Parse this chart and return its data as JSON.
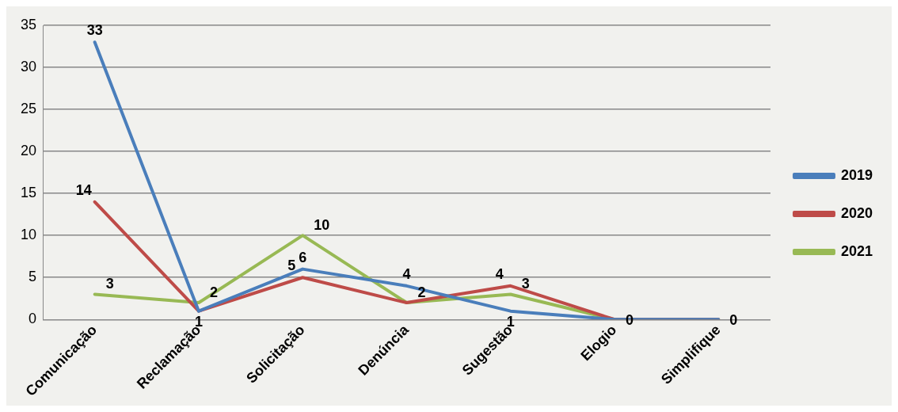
{
  "chart_data": {
    "type": "line",
    "categories": [
      "Comunicação",
      "Reclamação",
      "Solicitação",
      "Denúncia",
      "Sugestão",
      "Elogio",
      "Simplifique"
    ],
    "series": [
      {
        "name": "2019",
        "color": "#4a7ebb",
        "values": [
          33,
          1,
          6,
          4,
          1,
          0,
          0
        ],
        "value_labels": [
          "33",
          "1",
          "6",
          "4",
          "1",
          null,
          null
        ]
      },
      {
        "name": "2020",
        "color": "#be4b48",
        "values": [
          14,
          1,
          5,
          2,
          4,
          0,
          0
        ],
        "value_labels": [
          "14",
          null,
          "5",
          null,
          "4",
          null,
          null
        ]
      },
      {
        "name": "2021",
        "color": "#98b954",
        "values": [
          3,
          2,
          10,
          2,
          3,
          0,
          0
        ],
        "value_labels": [
          "3",
          "2",
          "10",
          "2",
          "3",
          "0",
          "0"
        ]
      }
    ],
    "ylim": [
      0,
      35
    ],
    "yticks": [
      0,
      5,
      10,
      15,
      20,
      25,
      30,
      35
    ],
    "grid": "y",
    "legend": "right",
    "marker": "none",
    "line_style": "solid"
  }
}
